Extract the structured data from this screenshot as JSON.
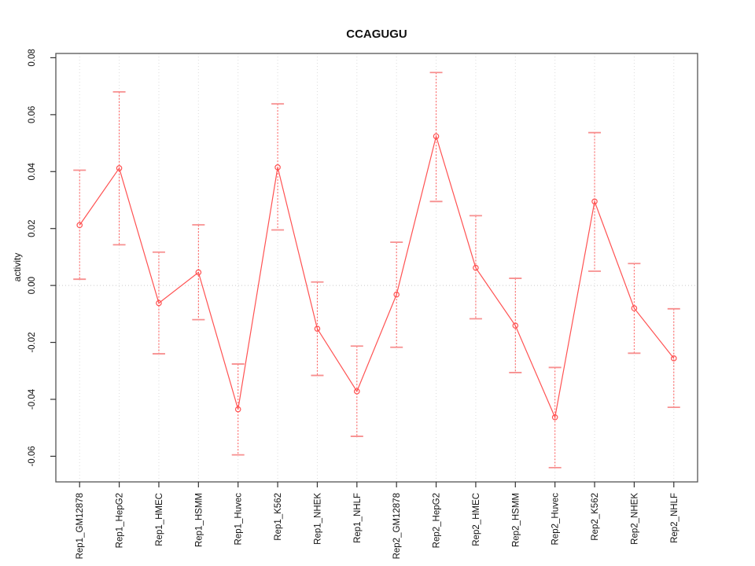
{
  "page": {
    "background": "#ffffff"
  },
  "style": {
    "series_color": "#ff5252",
    "cap_color": "#f78f8f",
    "errorbar_color": "#ff5c5c",
    "grid_color": "#dcdcdc",
    "zero_line_color": "#c9c9c9",
    "axis_color": "#555555",
    "tick_color": "#333333",
    "text_color": "#111111"
  },
  "chart_data": {
    "type": "line",
    "title": "CCAGUGU",
    "xlabel": "",
    "ylabel": "activity",
    "categories": [
      "Rep1_GM12878",
      "Rep1_HepG2",
      "Rep1_HMEC",
      "Rep1_HSMM",
      "Rep1_Huvec",
      "Rep1_K562",
      "Rep1_NHEK",
      "Rep1_NHLF",
      "Rep2_GM12878",
      "Rep2_HepG2",
      "Rep2_HMEC",
      "Rep2_HSMM",
      "Rep2_Huvec",
      "Rep2_K562",
      "Rep2_NHEK",
      "Rep2_NHLF"
    ],
    "series": [
      {
        "name": "activity",
        "marker": "open-circle",
        "values": [
          0.0212,
          0.0412,
          -0.0062,
          0.0046,
          -0.0435,
          0.0415,
          -0.0152,
          -0.0372,
          -0.0032,
          0.0524,
          0.0062,
          -0.0141,
          -0.0463,
          0.0295,
          -0.008,
          -0.0256
        ],
        "upper": [
          0.0405,
          0.068,
          0.0117,
          0.0213,
          -0.0276,
          0.0638,
          0.0012,
          -0.0213,
          0.0152,
          0.0748,
          0.0245,
          0.0025,
          -0.0288,
          0.0537,
          0.0077,
          -0.0082
        ],
        "lower": [
          0.0022,
          0.0143,
          -0.024,
          -0.012,
          -0.0595,
          0.0195,
          -0.0316,
          -0.053,
          -0.0217,
          0.0295,
          -0.0117,
          -0.0306,
          -0.064,
          0.005,
          -0.0238,
          -0.0428
        ]
      }
    ],
    "ylim": [
      -0.069,
      0.0815
    ],
    "yticks": [
      -0.06,
      -0.04,
      -0.02,
      0,
      0.02,
      0.04,
      0.06,
      0.08
    ],
    "ytick_labels": [
      "-0.06",
      "-0.04",
      "-0.02",
      "0.00",
      "0.02",
      "0.04",
      "0.06",
      "0.08"
    ],
    "grid": "vertical-dotted",
    "zero_line": true,
    "legend": "none",
    "errorbar_style": "dashed-vertical-with-caps"
  }
}
